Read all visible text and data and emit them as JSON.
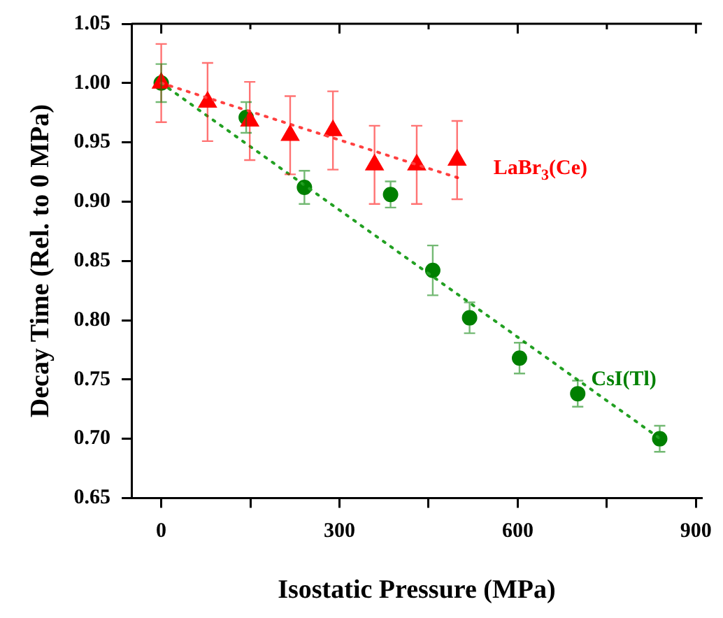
{
  "chart_data": {
    "type": "scatter",
    "xlabel": "Isostatic Pressure (MPa)",
    "ylabel": "Decay Time (Rel. to 0 MPa)",
    "xlim": [
      -50,
      910
    ],
    "xticks": [
      0,
      {
        "value": 150,
        "label": null
      },
      300,
      {
        "value": 450,
        "label": null
      },
      600,
      {
        "value": 750,
        "label": null
      },
      900
    ],
    "ylim": [
      0.65,
      1.05
    ],
    "yticks": [
      0.65,
      {
        "value": 0.7,
        "label": "0.70"
      },
      0.75,
      {
        "value": 0.8,
        "label": "0.80"
      },
      0.85,
      {
        "value": 0.9,
        "label": "0.90"
      },
      0.95,
      {
        "value": 1,
        "label": "1.00"
      },
      1.05
    ],
    "grid": false,
    "legend": false,
    "series": [
      {
        "type": "line",
        "x": [
          0,
          500
        ],
        "values": [
          1.0,
          0.92
        ],
        "color": "#ff4040",
        "line_style": "dotted",
        "marker": "none"
      },
      {
        "type": "line",
        "x": [
          0,
          840
        ],
        "values": [
          1.0,
          0.7
        ],
        "color": "#22a022",
        "line_style": "dotted",
        "marker": "none"
      },
      {
        "type": "scatter",
        "name": "LaBr$_{3}$(Ce)",
        "x": [
          0,
          78,
          149,
          217,
          289,
          359,
          430,
          498
        ],
        "values": [
          1.0,
          0.984,
          0.968,
          0.956,
          0.96,
          0.931,
          0.931,
          0.935
        ],
        "errors": [
          0.033,
          0.033,
          0.033,
          0.033,
          0.033,
          0.033,
          0.033,
          0.033
        ],
        "color": "#ff0000",
        "marker": "triangle"
      },
      {
        "type": "scatter",
        "name": "CsI(Tl)",
        "x": [
          0,
          143,
          241,
          386,
          457,
          519,
          603,
          701,
          839
        ],
        "values": [
          1.0,
          0.971,
          0.912,
          0.906,
          0.842,
          0.802,
          0.768,
          0.738,
          0.7
        ],
        "errors": [
          0.016,
          0.013,
          0.014,
          0.011,
          0.021,
          0.013,
          0.013,
          0.011,
          0.011
        ],
        "color": "#008000",
        "marker": "circle"
      }
    ]
  }
}
